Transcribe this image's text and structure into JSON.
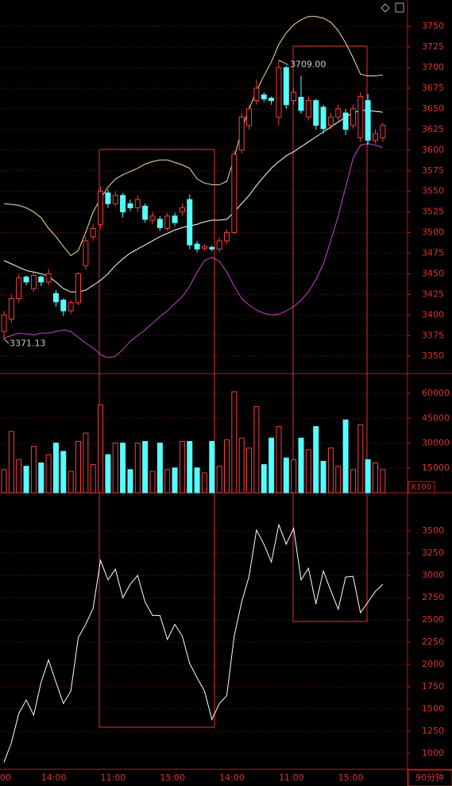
{
  "chart_data": [
    {
      "type": "candlestick",
      "ylim": [
        3329,
        3782
      ],
      "yticks": [
        3350,
        3375,
        3400,
        3425,
        3450,
        3475,
        3500,
        3525,
        3550,
        3575,
        3600,
        3625,
        3650,
        3675,
        3700,
        3725,
        3750
      ],
      "grid": true,
      "up_color": "#ff3b3b",
      "down_color": "#54ffff",
      "open": [
        3380,
        3395,
        3420,
        3446,
        3432,
        3446,
        3440,
        3426,
        3418,
        3405,
        3415,
        3460,
        3495,
        3510,
        3548,
        3535,
        3545,
        3535,
        3530,
        3532,
        3515,
        3516,
        3505,
        3520,
        3525,
        3540,
        3486,
        3481,
        3482,
        3480,
        3490,
        3500,
        3600,
        3630,
        3660,
        3667,
        3663,
        3640,
        3700,
        3660,
        3664,
        3640,
        3660,
        3652,
        3630,
        3640,
        3645,
        3630,
        3615,
        3660,
        3612,
        3615
      ],
      "high": [
        3405,
        3425,
        3450,
        3448,
        3452,
        3448,
        3456,
        3430,
        3420,
        3418,
        3452,
        3495,
        3510,
        3556,
        3552,
        3550,
        3548,
        3540,
        3545,
        3535,
        3525,
        3520,
        3524,
        3524,
        3535,
        3546,
        3490,
        3486,
        3484,
        3494,
        3504,
        3600,
        3645,
        3655,
        3685,
        3670,
        3665,
        3709,
        3702,
        3675,
        3690,
        3665,
        3662,
        3655,
        3645,
        3655,
        3650,
        3655,
        3670,
        3668,
        3625,
        3633
      ],
      "low": [
        3371.13,
        3390,
        3415,
        3436,
        3428,
        3435,
        3436,
        3410,
        3399,
        3402,
        3412,
        3455,
        3490,
        3505,
        3530,
        3532,
        3518,
        3526,
        3525,
        3512,
        3510,
        3502,
        3502,
        3508,
        3520,
        3480,
        3476,
        3478,
        3477,
        3476,
        3486,
        3498,
        3596,
        3625,
        3655,
        3658,
        3655,
        3630,
        3650,
        3655,
        3644,
        3636,
        3625,
        3620,
        3625,
        3635,
        3618,
        3626,
        3610,
        3606,
        3608,
        3610
      ],
      "close": [
        3400,
        3420,
        3445,
        3440,
        3448,
        3440,
        3450,
        3416,
        3405,
        3415,
        3450,
        3490,
        3505,
        3550,
        3535,
        3545,
        3525,
        3530,
        3540,
        3516,
        3520,
        3506,
        3520,
        3512,
        3530,
        3485,
        3480,
        3483,
        3480,
        3490,
        3500,
        3595,
        3640,
        3650,
        3675,
        3662,
        3660,
        3700,
        3655,
        3670,
        3648,
        3660,
        3630,
        3626,
        3640,
        3650,
        3625,
        3650,
        3665,
        3612,
        3620,
        3630
      ],
      "series": [
        {
          "color": "#e8e89a",
          "values": [
            3535,
            3534,
            3533,
            3530,
            3525,
            3518,
            3505,
            3495,
            3483,
            3472,
            3478,
            3500,
            3525,
            3541,
            3555,
            3565,
            3570,
            3574,
            3578,
            3583,
            3586,
            3588,
            3588,
            3585,
            3582,
            3578,
            3565,
            3560,
            3558,
            3558,
            3562,
            3590,
            3625,
            3650,
            3672,
            3690,
            3707,
            3728,
            3742,
            3752,
            3758,
            3762,
            3762,
            3760,
            3755,
            3745,
            3730,
            3712,
            3692,
            3690,
            3690,
            3691
          ]
        },
        {
          "color": "#ffffff",
          "values": [
            3466,
            3462,
            3458,
            3454,
            3452,
            3450,
            3447,
            3440,
            3432,
            3428,
            3428,
            3430,
            3436,
            3442,
            3450,
            3460,
            3468,
            3475,
            3480,
            3485,
            3490,
            3495,
            3499,
            3503,
            3506,
            3508,
            3510,
            3513,
            3515,
            3515,
            3516,
            3525,
            3535,
            3545,
            3557,
            3568,
            3578,
            3586,
            3593,
            3598,
            3604,
            3610,
            3616,
            3622,
            3628,
            3634,
            3640,
            3645,
            3648,
            3648,
            3647,
            3646
          ]
        },
        {
          "color": "#d040d0",
          "values": [
            3372,
            3375,
            3378,
            3377,
            3376,
            3378,
            3378,
            3380,
            3382,
            3380,
            3373,
            3366,
            3360,
            3352,
            3348,
            3350,
            3358,
            3368,
            3375,
            3382,
            3390,
            3398,
            3405,
            3414,
            3422,
            3435,
            3452,
            3466,
            3470,
            3465,
            3452,
            3435,
            3420,
            3412,
            3406,
            3402,
            3400,
            3401,
            3405,
            3410,
            3418,
            3428,
            3443,
            3462,
            3490,
            3520,
            3555,
            3590,
            3606,
            3608,
            3606,
            3603
          ]
        }
      ],
      "annotations": [
        {
          "text": "3709.00"
        },
        {
          "text": "3371.13"
        }
      ]
    },
    {
      "type": "bar",
      "ylim": [
        0,
        72000
      ],
      "yticks": [
        15000,
        30000,
        45000,
        60000
      ],
      "grid": true,
      "unit_label": "X100",
      "values": [
        14000,
        37000,
        20000,
        16000,
        28000,
        18000,
        23000,
        30000,
        25000,
        13000,
        31000,
        36000,
        17000,
        53000,
        23000,
        30000,
        30000,
        14000,
        30000,
        31000,
        13000,
        30000,
        14000,
        15000,
        31000,
        31000,
        15000,
        12000,
        31000,
        16000,
        32000,
        61000,
        33000,
        27000,
        52000,
        17000,
        33000,
        40000,
        21000,
        20000,
        33000,
        26000,
        40000,
        19000,
        27000,
        16000,
        44000,
        14000,
        41000,
        20000,
        18000,
        14000
      ]
    },
    {
      "type": "line",
      "color": "#ffffff",
      "ylim": [
        821,
        3929
      ],
      "yticks": [
        1000,
        1250,
        1500,
        1750,
        2000,
        2250,
        2500,
        2750,
        3000,
        3250,
        3500
      ],
      "grid": true,
      "period_label": "90分钟",
      "categories": [
        "00",
        null,
        null,
        null,
        null,
        "14:00",
        null,
        null,
        null,
        null,
        null,
        null,
        null,
        "11:00",
        null,
        null,
        null,
        null,
        null,
        null,
        null,
        "15:00",
        null,
        null,
        null,
        null,
        null,
        null,
        null,
        "14:00",
        null,
        null,
        null,
        null,
        null,
        null,
        null,
        "11:00",
        null,
        null,
        null,
        null,
        null,
        null,
        null,
        "15:00",
        null,
        null,
        null,
        null,
        null,
        null
      ],
      "values": [
        900,
        1120,
        1450,
        1600,
        1430,
        1800,
        2050,
        1800,
        1560,
        1700,
        2300,
        2450,
        2630,
        3170,
        2950,
        3070,
        2750,
        2900,
        3000,
        2700,
        2550,
        2550,
        2280,
        2450,
        2320,
        2010,
        1850,
        1700,
        1380,
        1560,
        1650,
        2320,
        2700,
        2990,
        3510,
        3350,
        3150,
        3570,
        3350,
        3530,
        2950,
        3080,
        2680,
        3050,
        2830,
        2620,
        2980,
        2990,
        2580,
        2700,
        2820,
        2900
      ]
    }
  ]
}
